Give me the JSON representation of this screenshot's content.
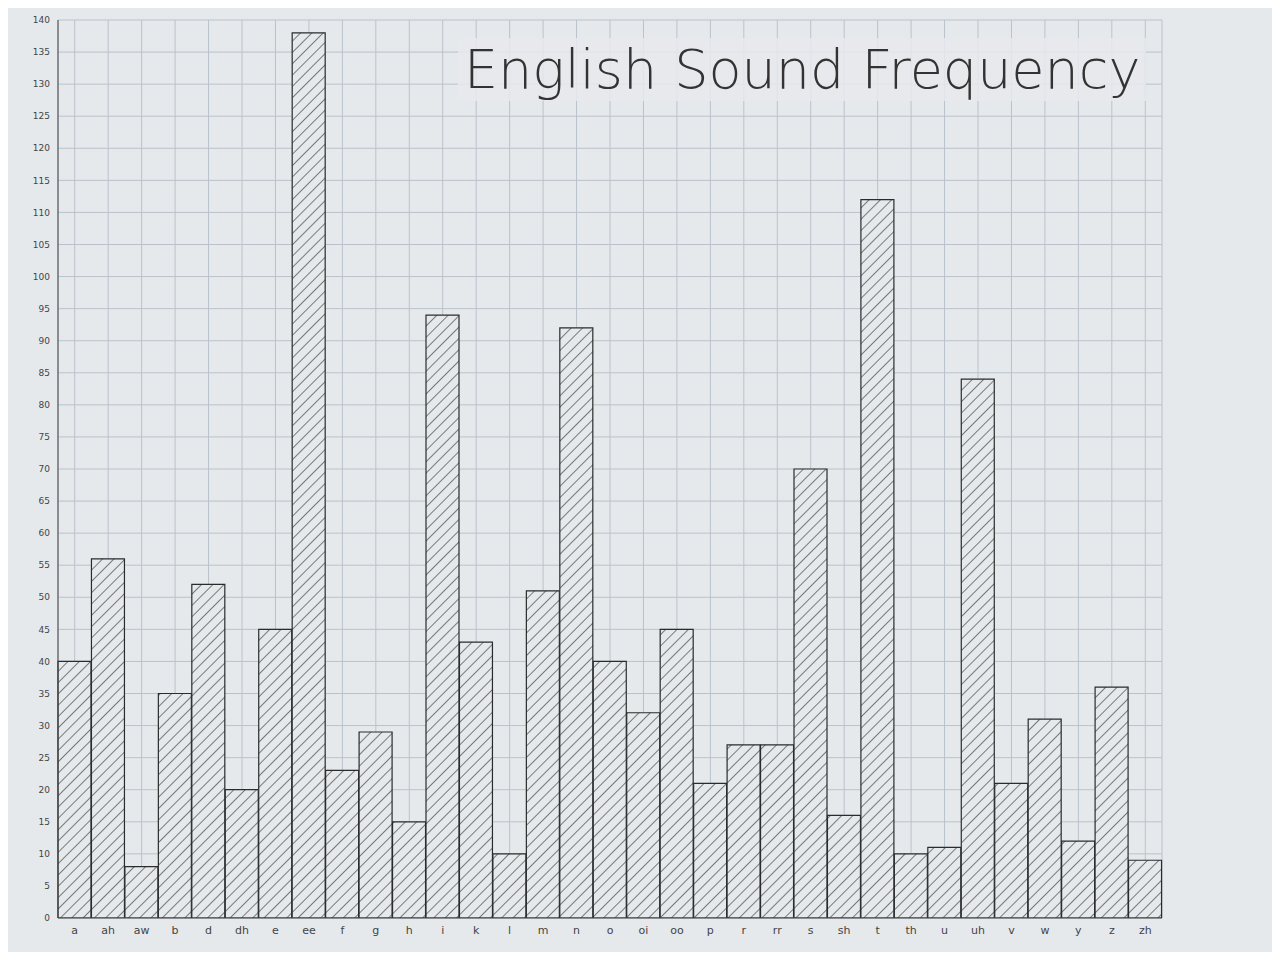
{
  "chart_data": {
    "type": "bar",
    "title": "English Sound Frequency",
    "categories": [
      "a",
      "ah",
      "aw",
      "b",
      "d",
      "dh",
      "e",
      "ee",
      "f",
      "g",
      "h",
      "i",
      "k",
      "l",
      "m",
      "n",
      "o",
      "oi",
      "oo",
      "p",
      "r",
      "rr",
      "s",
      "sh",
      "t",
      "th",
      "u",
      "uh",
      "v",
      "w",
      "y",
      "z",
      "zh"
    ],
    "values": [
      40,
      56,
      8,
      35,
      52,
      20,
      45,
      138,
      23,
      29,
      15,
      94,
      43,
      10,
      51,
      92,
      40,
      32,
      45,
      21,
      27,
      27,
      70,
      16,
      112,
      10,
      11,
      84,
      21,
      31,
      12,
      36,
      9
    ],
    "color": "#2b2b2b",
    "ylim": [
      0,
      140
    ],
    "yticks": [
      0,
      5,
      10,
      15,
      20,
      25,
      30,
      35,
      40,
      45,
      50,
      55,
      60,
      65,
      70,
      75,
      80,
      85,
      90,
      95,
      100,
      105,
      110,
      115,
      120,
      125,
      130,
      135,
      140
    ],
    "grid": true
  }
}
